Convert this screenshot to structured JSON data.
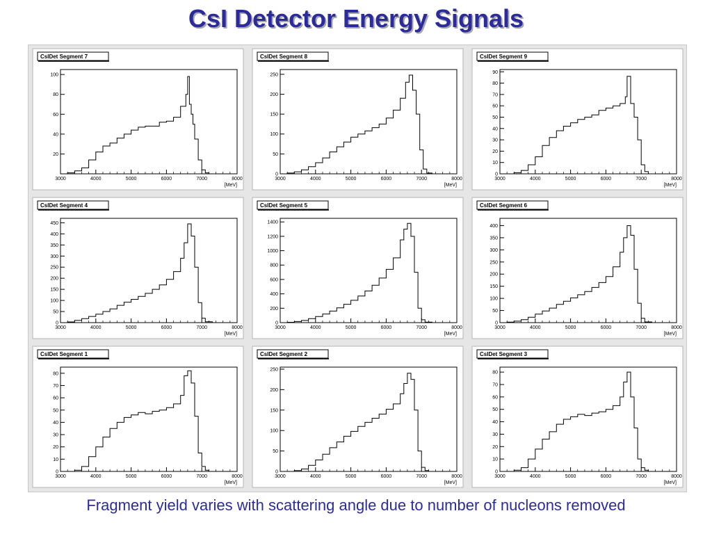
{
  "title": "CsI Detector Energy Signals",
  "caption": "Fragment yield varies with scattering angle due to number of nucleons removed",
  "colors": {
    "title": "#2b2b9c",
    "histogram": "#000000",
    "pad_background": "#ffffff",
    "canvas_background": "#e6e6e6"
  },
  "chart_data": [
    {
      "type": "line",
      "title": "CsIDet Segment 7",
      "xlabel": "[MeV]",
      "ylabel": "",
      "xlim": [
        3000,
        8000
      ],
      "ylim": [
        0,
        105
      ],
      "xticks": [
        3000,
        4000,
        5000,
        6000,
        7000,
        8000
      ],
      "yticks": [
        20,
        40,
        60,
        80,
        100
      ],
      "series": [
        {
          "x": [
            3000,
            3200,
            3400,
            3600,
            3800,
            4000,
            4200,
            4400,
            4600,
            4800,
            5000,
            5200,
            5400,
            5600,
            5800,
            6000,
            6200,
            6400,
            6550,
            6600,
            6650,
            6700,
            6750,
            6800,
            6900,
            7000,
            7100,
            7200
          ],
          "y": [
            0,
            1,
            3,
            6,
            14,
            22,
            28,
            31,
            36,
            40,
            44,
            47,
            48,
            48,
            52,
            53,
            57,
            68,
            80,
            98,
            70,
            60,
            50,
            35,
            14,
            4,
            1,
            0
          ]
        }
      ]
    },
    {
      "type": "line",
      "title": "CsIDet Segment 8",
      "xlabel": "[MeV]",
      "ylabel": "",
      "xlim": [
        3000,
        8000
      ],
      "ylim": [
        0,
        262
      ],
      "xticks": [
        3000,
        4000,
        5000,
        6000,
        7000,
        8000
      ],
      "yticks": [
        0,
        50,
        100,
        150,
        200,
        250
      ],
      "series": [
        {
          "x": [
            3000,
            3200,
            3400,
            3600,
            3800,
            4000,
            4200,
            4400,
            4600,
            4800,
            5000,
            5200,
            5400,
            5600,
            5800,
            6000,
            6200,
            6400,
            6550,
            6650,
            6750,
            6850,
            6950,
            7050,
            7150,
            7300
          ],
          "y": [
            0,
            2,
            5,
            10,
            18,
            28,
            40,
            55,
            68,
            80,
            92,
            100,
            108,
            116,
            125,
            140,
            160,
            190,
            230,
            248,
            210,
            150,
            60,
            12,
            2,
            0
          ]
        }
      ]
    },
    {
      "type": "line",
      "title": "CsIDet Segment 9",
      "xlabel": "[MeV]",
      "ylabel": "",
      "xlim": [
        3000,
        8000
      ],
      "ylim": [
        0,
        92
      ],
      "xticks": [
        3000,
        4000,
        5000,
        6000,
        7000,
        8000
      ],
      "yticks": [
        0,
        10,
        20,
        30,
        40,
        50,
        60,
        70,
        80,
        90
      ],
      "series": [
        {
          "x": [
            3000,
            3400,
            3600,
            3800,
            4000,
            4200,
            4400,
            4600,
            4800,
            5000,
            5200,
            5400,
            5600,
            5800,
            6000,
            6200,
            6400,
            6550,
            6600,
            6700,
            6800,
            6900,
            7000,
            7100,
            7200
          ],
          "y": [
            0,
            1,
            3,
            8,
            15,
            25,
            32,
            38,
            42,
            45,
            48,
            50,
            52,
            56,
            58,
            60,
            62,
            68,
            86,
            62,
            50,
            30,
            8,
            2,
            0
          ]
        }
      ]
    },
    {
      "type": "line",
      "title": "CsIDet Segment 4",
      "xlabel": "[MeV]",
      "ylabel": "",
      "xlim": [
        3000,
        8000
      ],
      "ylim": [
        0,
        470
      ],
      "xticks": [
        3000,
        4000,
        5000,
        6000,
        7000,
        8000
      ],
      "yticks": [
        0,
        50,
        100,
        150,
        200,
        250,
        300,
        350,
        400,
        450
      ],
      "series": [
        {
          "x": [
            3000,
            3200,
            3400,
            3600,
            3800,
            4000,
            4200,
            4400,
            4600,
            4800,
            5000,
            5200,
            5400,
            5600,
            5800,
            6000,
            6200,
            6400,
            6500,
            6600,
            6700,
            6800,
            6900,
            7000,
            7100,
            7300
          ],
          "y": [
            0,
            3,
            10,
            18,
            28,
            38,
            50,
            62,
            78,
            92,
            105,
            118,
            132,
            150,
            170,
            195,
            230,
            290,
            360,
            445,
            390,
            250,
            90,
            20,
            4,
            0
          ]
        }
      ]
    },
    {
      "type": "line",
      "title": "CsIDet Segment 5",
      "xlabel": "[MeV]",
      "ylabel": "",
      "xlim": [
        3000,
        8000
      ],
      "ylim": [
        0,
        1450
      ],
      "xticks": [
        3000,
        4000,
        5000,
        6000,
        7000,
        8000
      ],
      "yticks": [
        0,
        200,
        400,
        600,
        800,
        1000,
        1200,
        1400
      ],
      "series": [
        {
          "x": [
            3000,
            3200,
            3400,
            3600,
            3800,
            4000,
            4200,
            4400,
            4600,
            4800,
            5000,
            5200,
            5400,
            5600,
            5800,
            6000,
            6200,
            6400,
            6500,
            6600,
            6700,
            6800,
            6900,
            7000,
            7100,
            7300
          ],
          "y": [
            0,
            5,
            15,
            30,
            55,
            85,
            120,
            160,
            205,
            255,
            310,
            370,
            440,
            520,
            620,
            740,
            900,
            1150,
            1300,
            1380,
            1200,
            700,
            200,
            40,
            8,
            0
          ]
        }
      ]
    },
    {
      "type": "line",
      "title": "CsIDet Segment 6",
      "xlabel": "[MeV]",
      "ylabel": "",
      "xlim": [
        3000,
        8000
      ],
      "ylim": [
        0,
        430
      ],
      "xticks": [
        3000,
        4000,
        5000,
        6000,
        7000,
        8000
      ],
      "yticks": [
        0,
        50,
        100,
        150,
        200,
        250,
        300,
        350,
        400
      ],
      "series": [
        {
          "x": [
            3000,
            3200,
            3400,
            3600,
            3800,
            4000,
            4200,
            4400,
            4600,
            4800,
            5000,
            5200,
            5400,
            5600,
            5800,
            6000,
            6200,
            6400,
            6500,
            6600,
            6700,
            6800,
            6900,
            7000,
            7100,
            7300
          ],
          "y": [
            0,
            2,
            6,
            12,
            22,
            35,
            48,
            60,
            75,
            88,
            102,
            115,
            128,
            145,
            165,
            190,
            230,
            290,
            350,
            400,
            360,
            220,
            80,
            18,
            3,
            0
          ]
        }
      ]
    },
    {
      "type": "line",
      "title": "CsIDet Segment 1",
      "xlabel": "[MeV]",
      "ylabel": "",
      "xlim": [
        3000,
        8000
      ],
      "ylim": [
        0,
        85
      ],
      "xticks": [
        3000,
        4000,
        5000,
        6000,
        7000,
        8000
      ],
      "yticks": [
        0,
        10,
        20,
        30,
        40,
        50,
        60,
        70,
        80
      ],
      "series": [
        {
          "x": [
            3000,
            3400,
            3600,
            3800,
            4000,
            4200,
            4400,
            4600,
            4800,
            5000,
            5200,
            5400,
            5600,
            5800,
            6000,
            6200,
            6400,
            6500,
            6600,
            6700,
            6800,
            6900,
            7000,
            7100,
            7200
          ],
          "y": [
            0,
            1,
            4,
            12,
            20,
            28,
            35,
            40,
            44,
            46,
            48,
            47,
            49,
            50,
            52,
            55,
            62,
            78,
            82,
            72,
            45,
            15,
            4,
            1,
            0
          ]
        }
      ]
    },
    {
      "type": "line",
      "title": "CsIDet Segment 2",
      "xlabel": "[MeV]",
      "ylabel": "",
      "xlim": [
        3000,
        8000
      ],
      "ylim": [
        0,
        255
      ],
      "xticks": [
        3000,
        4000,
        5000,
        6000,
        7000,
        8000
      ],
      "yticks": [
        0,
        50,
        100,
        150,
        200,
        250
      ],
      "series": [
        {
          "x": [
            3000,
            3400,
            3600,
            3800,
            4000,
            4200,
            4400,
            4600,
            4800,
            5000,
            5200,
            5400,
            5600,
            5800,
            6000,
            6200,
            6400,
            6500,
            6600,
            6700,
            6800,
            6900,
            7000,
            7100,
            7200
          ],
          "y": [
            0,
            2,
            6,
            15,
            28,
            42,
            58,
            72,
            86,
            98,
            110,
            120,
            130,
            140,
            152,
            165,
            190,
            215,
            240,
            225,
            150,
            50,
            10,
            2,
            0
          ]
        }
      ]
    },
    {
      "type": "line",
      "title": "CsIDet Segment 3",
      "xlabel": "[MeV]",
      "ylabel": "",
      "xlim": [
        3000,
        8000
      ],
      "ylim": [
        0,
        84
      ],
      "xticks": [
        3000,
        4000,
        5000,
        6000,
        7000,
        8000
      ],
      "yticks": [
        0,
        10,
        20,
        30,
        40,
        50,
        60,
        70,
        80
      ],
      "series": [
        {
          "x": [
            3000,
            3400,
            3600,
            3800,
            4000,
            4200,
            4400,
            4600,
            4800,
            5000,
            5200,
            5400,
            5600,
            5800,
            6000,
            6200,
            6400,
            6500,
            6600,
            6700,
            6800,
            6900,
            7000,
            7100,
            7200
          ],
          "y": [
            0,
            1,
            3,
            10,
            18,
            26,
            32,
            38,
            42,
            44,
            46,
            45,
            47,
            48,
            50,
            53,
            60,
            72,
            80,
            60,
            35,
            10,
            3,
            1,
            0
          ]
        }
      ]
    }
  ]
}
